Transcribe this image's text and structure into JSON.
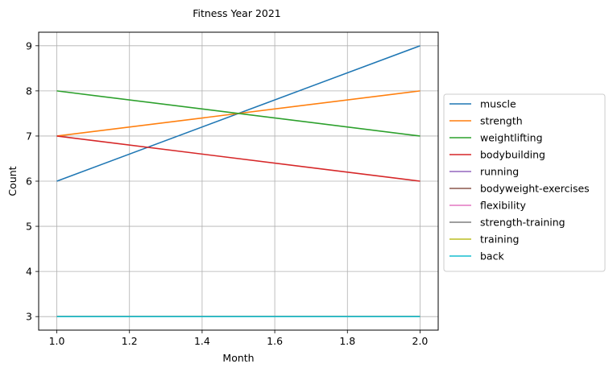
{
  "chart_data": {
    "type": "line",
    "title": "Fitness Year 2021",
    "xlabel": "Month",
    "ylabel": "Count",
    "xlim": [
      0.95,
      2.05
    ],
    "ylim": [
      2.7,
      9.3
    ],
    "xticks": [
      "1.0",
      "1.2",
      "1.4",
      "1.6",
      "1.8",
      "2.0"
    ],
    "xtick_values": [
      1.0,
      1.2,
      1.4,
      1.6,
      1.8,
      2.0
    ],
    "yticks": [
      "3",
      "4",
      "5",
      "6",
      "7",
      "8",
      "9"
    ],
    "ytick_values": [
      3,
      4,
      5,
      6,
      7,
      8,
      9
    ],
    "grid": true,
    "legend_position": "right-outside",
    "x": [
      1.0,
      2.0
    ],
    "series": [
      {
        "name": "muscle",
        "values": [
          6,
          9
        ],
        "color": "#1f77b4"
      },
      {
        "name": "strength",
        "values": [
          7,
          8
        ],
        "color": "#ff7f0e"
      },
      {
        "name": "weightlifting",
        "values": [
          8,
          7
        ],
        "color": "#2ca02c"
      },
      {
        "name": "bodybuilding",
        "values": [
          7,
          6
        ],
        "color": "#d62728"
      },
      {
        "name": "running",
        "values": [
          3,
          3
        ],
        "color": "#9467bd"
      },
      {
        "name": "bodyweight-exercises",
        "values": [
          3,
          3
        ],
        "color": "#8c564b"
      },
      {
        "name": "flexibility",
        "values": [
          3,
          3
        ],
        "color": "#e377c2"
      },
      {
        "name": "strength-training",
        "values": [
          3,
          3
        ],
        "color": "#7f7f7f"
      },
      {
        "name": "training",
        "values": [
          3,
          3
        ],
        "color": "#bcbd22"
      },
      {
        "name": "back",
        "values": [
          3,
          3
        ],
        "color": "#17becf"
      }
    ]
  }
}
